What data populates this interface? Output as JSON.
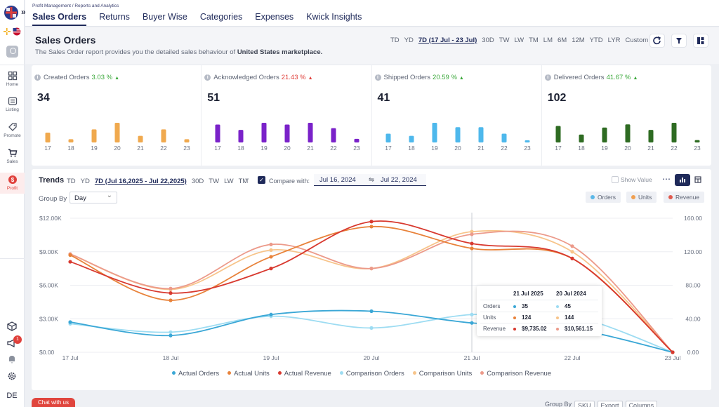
{
  "breadcrumb": "Profit Management / Reports and Analytics",
  "top_tabs": [
    "Sales Orders",
    "Returns",
    "Buyer Wise",
    "Categories",
    "Expenses",
    "Kwick Insights"
  ],
  "rail": {
    "items": [
      "Home",
      "Listing",
      "Promote",
      "Sales",
      "Profit"
    ],
    "notification_count": "1",
    "avatar": "DE"
  },
  "header": {
    "title": "Sales Orders",
    "subtitle_prefix": "The Sales Order report provides you the detailed sales behaviour of ",
    "subtitle_bold": "United States marketplace.",
    "ranges": [
      "TD",
      "YD",
      "7D (17 Jul - 23 Jul)",
      "30D",
      "TW",
      "LW",
      "TM",
      "LM",
      "6M",
      "12M",
      "YTD",
      "LYR",
      "Custom"
    ],
    "active_range": "7D (17 Jul - 23 Jul)"
  },
  "kpis": [
    {
      "label": "Created Orders",
      "change": "3.03 %",
      "direction": "up",
      "value": "34",
      "color": "#f0a94e",
      "days": [
        "17",
        "18",
        "19",
        "20",
        "21",
        "22",
        "23"
      ],
      "bars": [
        3,
        1,
        4,
        6,
        2,
        4,
        1
      ]
    },
    {
      "label": "Acknowledged Orders",
      "change": "21.43 %",
      "direction": "up",
      "value": "51",
      "color": "#7a22c9",
      "days": [
        "17",
        "18",
        "19",
        "20",
        "21",
        "22",
        "23"
      ],
      "bars": [
        10,
        7,
        11,
        10,
        11,
        8,
        2
      ]
    },
    {
      "label": "Shipped Orders",
      "change": "20.59 %",
      "direction": "up",
      "value": "41",
      "color": "#4eb8ec",
      "days": [
        "17",
        "18",
        "19",
        "20",
        "21",
        "22",
        "23"
      ],
      "bars": [
        4,
        3,
        9,
        7,
        7,
        4,
        1
      ]
    },
    {
      "label": "Delivered Orders",
      "change": "41.67 %",
      "direction": "up",
      "value": "102",
      "color": "#2e6b22",
      "days": [
        "17",
        "18",
        "19",
        "20",
        "21",
        "22",
        "23"
      ],
      "bars": [
        21,
        10,
        19,
        23,
        16,
        25,
        3
      ]
    }
  ],
  "trends": {
    "title": "Trends",
    "ranges": [
      "TD",
      "YD",
      "7D (Jul 16,2025 - Jul 22,2025)",
      "30D",
      "TW",
      "LW",
      "TM"
    ],
    "active_range": "7D (Jul 16,2025 - Jul 22,2025)",
    "compare_label": "Compare with:",
    "compare_from": "Jul 16, 2024",
    "compare_to": "Jul 22, 2024",
    "show_value": "Show Value",
    "group_by_label": "Group By",
    "group_by_value": "Day",
    "legend_pills": [
      {
        "label": "Orders",
        "color": "#5bb8e8"
      },
      {
        "label": "Units",
        "color": "#f0a052"
      },
      {
        "label": "Revenue",
        "color": "#e05a4e"
      }
    ]
  },
  "tooltip": {
    "col1": "21 Jul 2025",
    "col2": "20 Jul 2024",
    "rows": [
      {
        "label": "Orders",
        "a": "35",
        "b": "45",
        "ca": "#3aa7d6",
        "cb": "#9ddcf2"
      },
      {
        "label": "Units",
        "a": "124",
        "b": "144",
        "ca": "#e8823a",
        "cb": "#f7c48a"
      },
      {
        "label": "Revenue",
        "a": "$9,735.02",
        "b": "$10,561.15",
        "ca": "#d8392f",
        "cb": "#ec9a8a"
      }
    ]
  },
  "chart_data": {
    "type": "line",
    "x": [
      "17 Jul",
      "18 Jul",
      "19 Jul",
      "20 Jul",
      "21 Jul",
      "22 Jul",
      "23 Jul"
    ],
    "y_left_ticks": [
      "$0.00",
      "$3.00K",
      "$6.00K",
      "$9.00K",
      "$12.00K"
    ],
    "y_left_lim": [
      0,
      12000
    ],
    "y_right_ticks": [
      "0.00",
      "40.00",
      "80.00",
      "120.00",
      "160.00"
    ],
    "y_right_lim": [
      0,
      160
    ],
    "series": [
      {
        "name": "Actual Orders",
        "axis": "right",
        "color": "#3aa7d6",
        "values": [
          36,
          20,
          45,
          49,
          35,
          28,
          0
        ]
      },
      {
        "name": "Actual Units",
        "axis": "right",
        "color": "#e8823a",
        "values": [
          116,
          62,
          114,
          150,
          124,
          112,
          0
        ]
      },
      {
        "name": "Actual Revenue",
        "axis": "left",
        "color": "#d8392f",
        "values": [
          8100,
          5300,
          7500,
          11700,
          9735,
          8400,
          0
        ]
      },
      {
        "name": "Comparison Orders",
        "axis": "right",
        "color": "#9ddcf2",
        "values": [
          34,
          24,
          43,
          29,
          45,
          43,
          0
        ]
      },
      {
        "name": "Comparison Units",
        "axis": "right",
        "color": "#f7c48a",
        "values": [
          117,
          75,
          122,
          100,
          144,
          120,
          0
        ]
      },
      {
        "name": "Comparison Revenue",
        "axis": "left",
        "color": "#ec9a8a",
        "values": [
          8800,
          5700,
          9650,
          7500,
          10561,
          9500,
          0
        ]
      }
    ]
  },
  "chat_label": "Chat with us",
  "bottom_bar": [
    "Group By",
    "SKU",
    "Export",
    "Columns"
  ]
}
